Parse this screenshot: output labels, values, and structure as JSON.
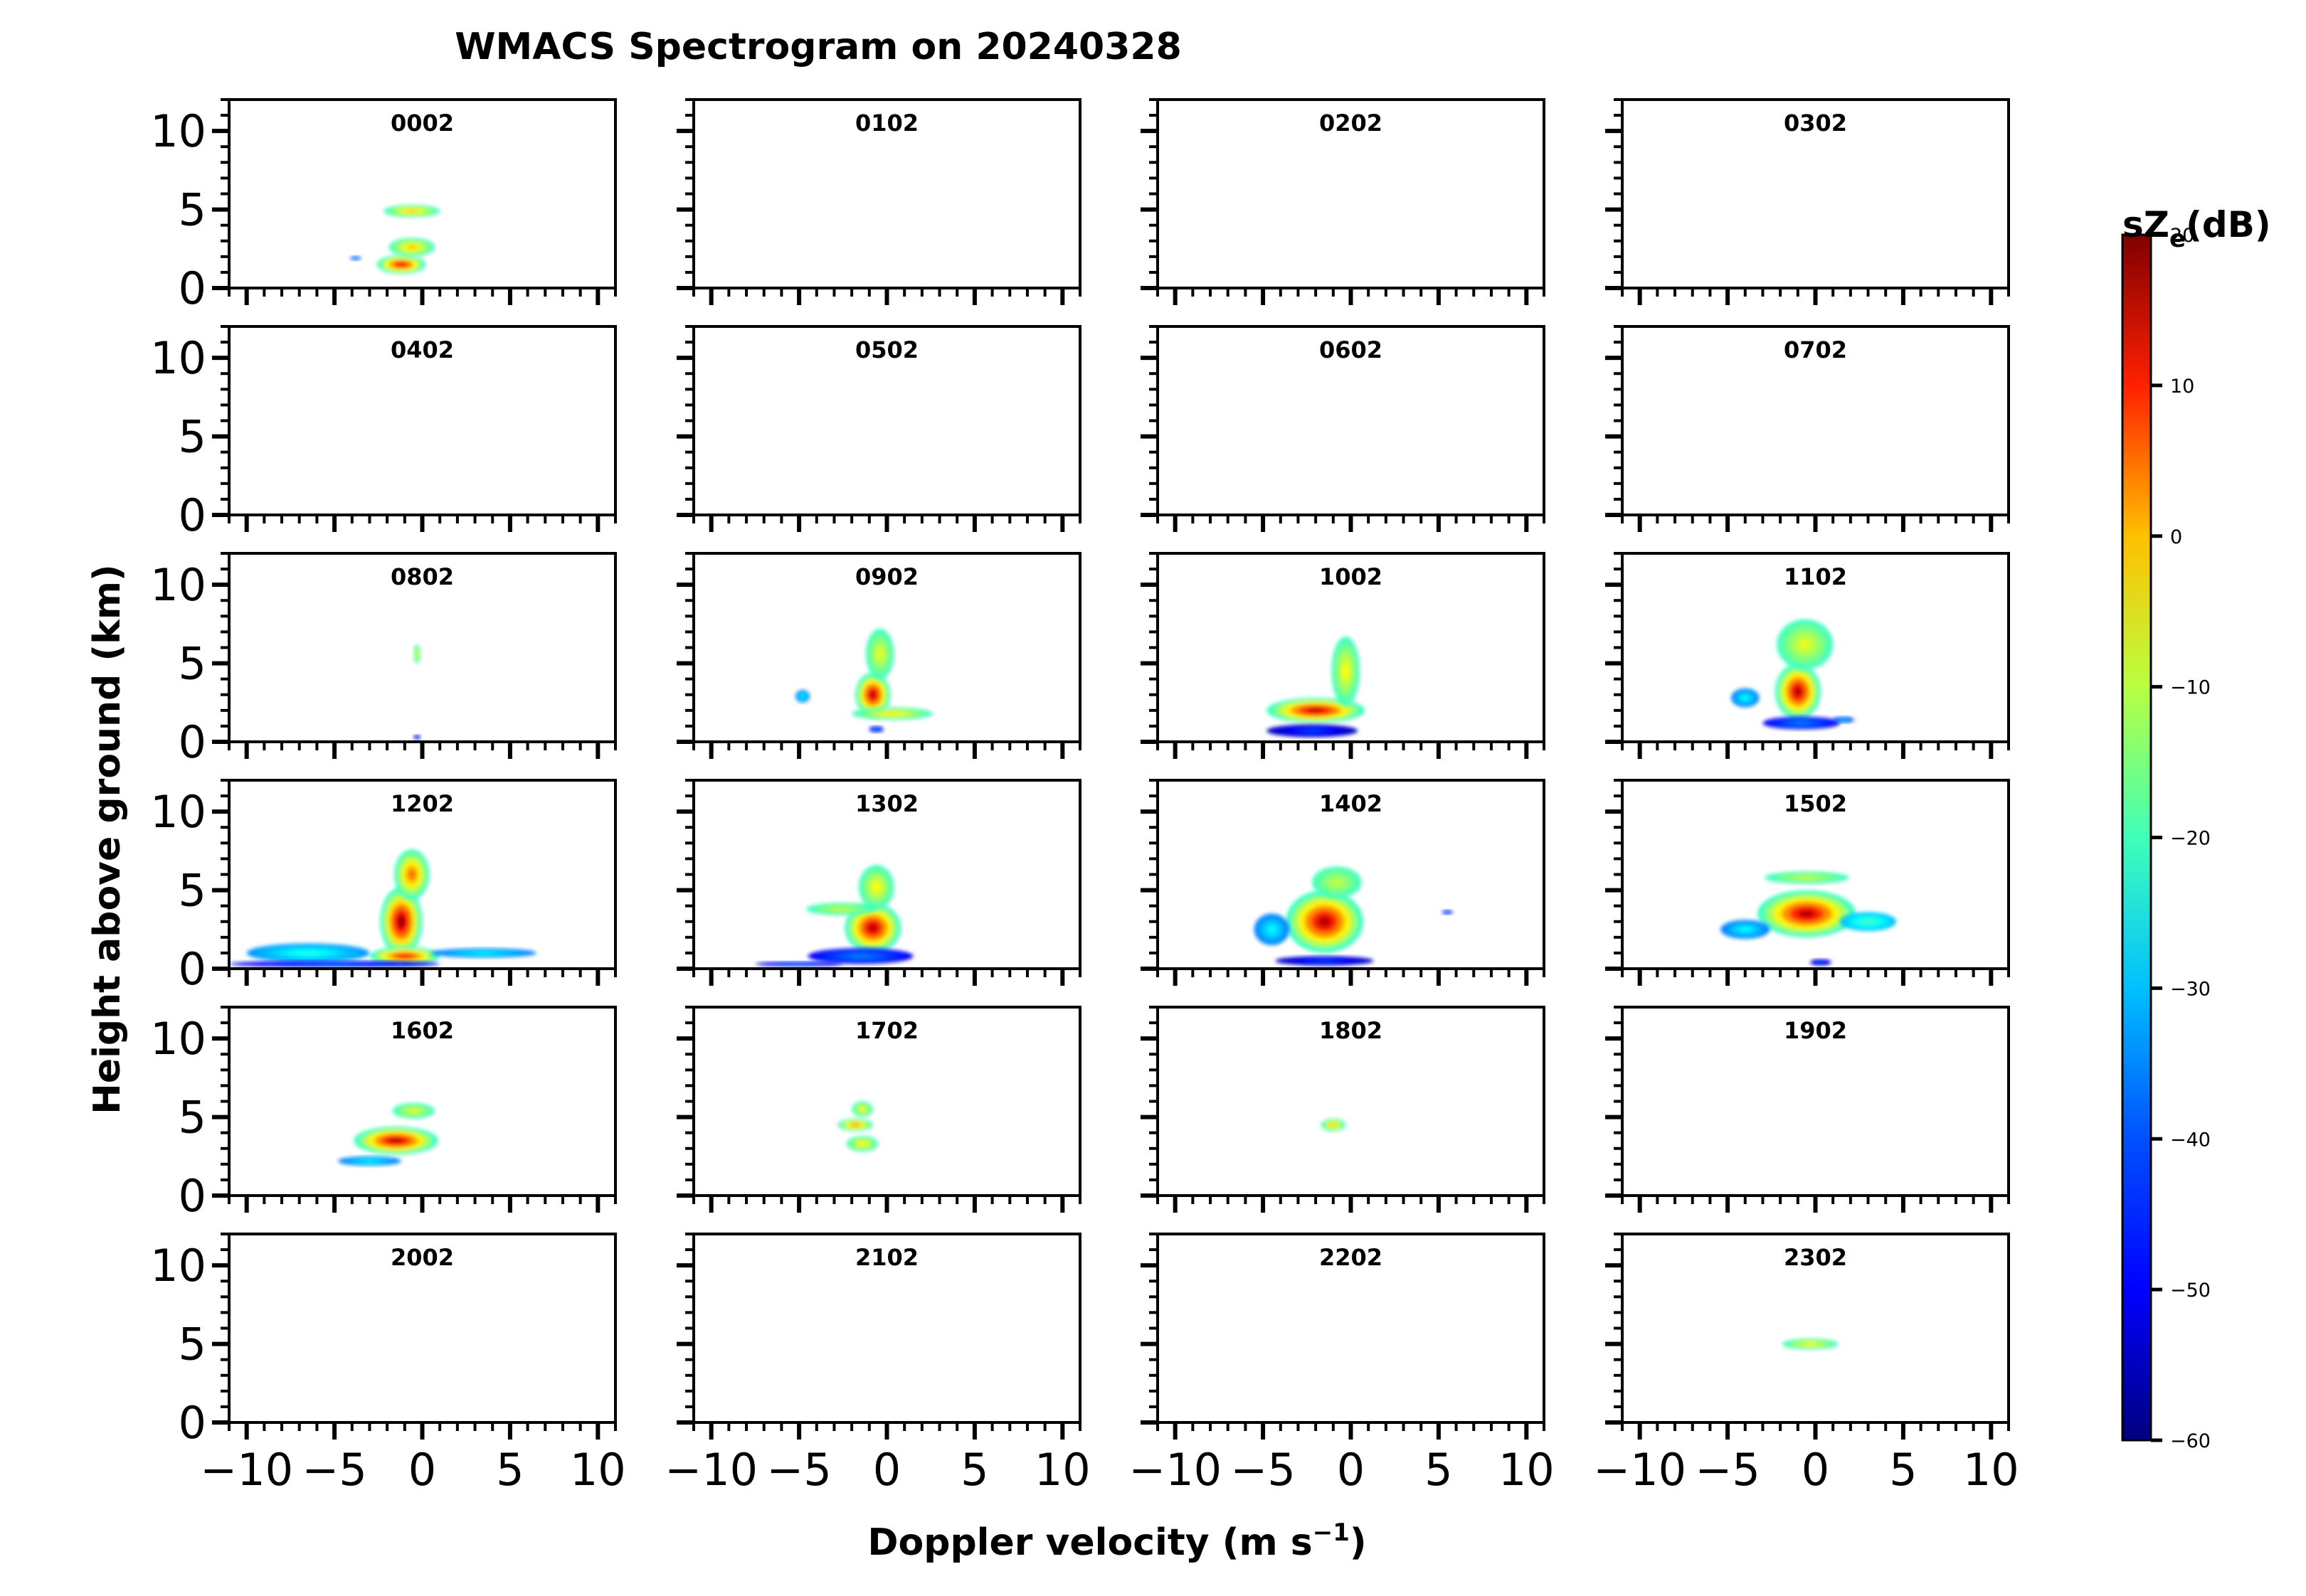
{
  "chart_data": {
    "type": "heatmap",
    "title": "WMACS Spectrogram on 20240328",
    "xlabel": "Doppler velocity (m s",
    "xlabel_superscript": "−1",
    "xlabel_suffix": ")",
    "ylabel": "Height above ground (km)",
    "xlim": [
      -11,
      11
    ],
    "ylim": [
      0,
      12
    ],
    "x_ticks": [
      -10,
      -5,
      0,
      5,
      10
    ],
    "x_tick_labels": [
      "−10",
      "−5",
      "0",
      "5",
      "10"
    ],
    "y_ticks": [
      0,
      5,
      10
    ],
    "y_tick_labels": [
      "0",
      "5",
      "10"
    ],
    "colorbar": {
      "label": "sZ",
      "label_subscript": "e",
      "label_suffix": "(dB)",
      "range": [
        -60,
        20
      ],
      "ticks": [
        20,
        10,
        0,
        -10,
        -20,
        -30,
        -40,
        -50,
        -60
      ],
      "tick_labels": [
        "20",
        "10",
        "0",
        "−10",
        "−20",
        "−30",
        "−40",
        "−50",
        "−60"
      ],
      "colormap": "jet",
      "colors": [
        "#00007f",
        "#0000ff",
        "#007fff",
        "#00ffff",
        "#7fff7f",
        "#ffff00",
        "#ff7f00",
        "#ff0000",
        "#7f0000"
      ]
    },
    "panels": [
      {
        "time": "0002",
        "echo": [
          {
            "v": -1.2,
            "h": 1.5,
            "dv": 1.4,
            "dh": 0.6,
            "peak": 12
          },
          {
            "v": -0.6,
            "h": 2.6,
            "dv": 1.3,
            "dh": 0.6,
            "peak": -5
          },
          {
            "v": -0.6,
            "h": 4.9,
            "dv": 1.6,
            "dh": 0.4,
            "peak": -5
          },
          {
            "v": -3.8,
            "h": 1.9,
            "dv": 0.3,
            "dh": 0.1,
            "peak": -35
          }
        ]
      },
      {
        "time": "0102",
        "echo": []
      },
      {
        "time": "0202",
        "echo": []
      },
      {
        "time": "0302",
        "echo": []
      },
      {
        "time": "0402",
        "echo": []
      },
      {
        "time": "0502",
        "echo": []
      },
      {
        "time": "0602",
        "echo": []
      },
      {
        "time": "0702",
        "echo": []
      },
      {
        "time": "0802",
        "echo": [
          {
            "v": -0.3,
            "h": 5.6,
            "dv": 0.2,
            "dh": 0.6,
            "peak": -12
          },
          {
            "v": -0.3,
            "h": 0.3,
            "dv": 0.2,
            "dh": 0.1,
            "peak": -45
          }
        ]
      },
      {
        "time": "0902",
        "echo": [
          {
            "v": -0.8,
            "h": 3.0,
            "dv": 1.0,
            "dh": 1.4,
            "peak": 15
          },
          {
            "v": -0.4,
            "h": 5.6,
            "dv": 0.8,
            "dh": 1.6,
            "peak": -12
          },
          {
            "v": 0.3,
            "h": 1.8,
            "dv": 2.3,
            "dh": 0.4,
            "peak": -8
          },
          {
            "v": -4.8,
            "h": 2.9,
            "dv": 0.4,
            "dh": 0.4,
            "peak": -30
          },
          {
            "v": -0.6,
            "h": 0.8,
            "dv": 0.4,
            "dh": 0.2,
            "peak": -40
          }
        ]
      },
      {
        "time": "1002",
        "echo": [
          {
            "v": -2.0,
            "h": 2.0,
            "dv": 2.8,
            "dh": 0.8,
            "peak": 15
          },
          {
            "v": -0.3,
            "h": 4.5,
            "dv": 0.8,
            "dh": 2.2,
            "peak": -10
          },
          {
            "v": -2.2,
            "h": 0.7,
            "dv": 2.6,
            "dh": 0.4,
            "peak": -45
          }
        ]
      },
      {
        "time": "1102",
        "echo": [
          {
            "v": -1.0,
            "h": 3.2,
            "dv": 1.3,
            "dh": 1.8,
            "peak": 15
          },
          {
            "v": -0.6,
            "h": 6.2,
            "dv": 1.6,
            "dh": 1.6,
            "peak": -12
          },
          {
            "v": -4.0,
            "h": 2.8,
            "dv": 0.8,
            "dh": 0.6,
            "peak": -30
          },
          {
            "v": -0.8,
            "h": 1.2,
            "dv": 2.2,
            "dh": 0.4,
            "peak": -40
          },
          {
            "v": 1.6,
            "h": 1.4,
            "dv": 0.6,
            "dh": 0.2,
            "peak": -35
          }
        ]
      },
      {
        "time": "1202",
        "echo": [
          {
            "v": -1.2,
            "h": 3.0,
            "dv": 1.2,
            "dh": 2.2,
            "peak": 18
          },
          {
            "v": -0.6,
            "h": 6.0,
            "dv": 1.0,
            "dh": 1.6,
            "peak": 2
          },
          {
            "v": -1.0,
            "h": 0.8,
            "dv": 2.0,
            "dh": 0.6,
            "peak": 10
          },
          {
            "v": -6.5,
            "h": 1.0,
            "dv": 3.5,
            "dh": 0.6,
            "peak": -28
          },
          {
            "v": -5.0,
            "h": 0.3,
            "dv": 6.0,
            "dh": 0.2,
            "peak": -42
          },
          {
            "v": 3.5,
            "h": 1.0,
            "dv": 3.0,
            "dh": 0.3,
            "peak": -30
          }
        ]
      },
      {
        "time": "1302",
        "echo": [
          {
            "v": -0.8,
            "h": 2.6,
            "dv": 1.6,
            "dh": 1.6,
            "peak": 15
          },
          {
            "v": -0.6,
            "h": 5.2,
            "dv": 1.0,
            "dh": 1.4,
            "peak": -10
          },
          {
            "v": -2.6,
            "h": 3.8,
            "dv": 2.0,
            "dh": 0.4,
            "peak": -15
          },
          {
            "v": -1.5,
            "h": 0.8,
            "dv": 3.0,
            "dh": 0.5,
            "peak": -40
          },
          {
            "v": -5.0,
            "h": 0.3,
            "dv": 2.5,
            "dh": 0.15,
            "peak": -42
          }
        ]
      },
      {
        "time": "1402",
        "echo": [
          {
            "v": -1.5,
            "h": 3.0,
            "dv": 2.2,
            "dh": 2.0,
            "peak": 15
          },
          {
            "v": -0.8,
            "h": 5.5,
            "dv": 1.4,
            "dh": 1.0,
            "peak": -15
          },
          {
            "v": -4.5,
            "h": 2.5,
            "dv": 1.0,
            "dh": 1.0,
            "peak": -30
          },
          {
            "v": -1.5,
            "h": 0.5,
            "dv": 2.8,
            "dh": 0.3,
            "peak": -45
          },
          {
            "v": 5.5,
            "h": 3.6,
            "dv": 0.3,
            "dh": 0.1,
            "peak": -40
          }
        ]
      },
      {
        "time": "1502",
        "echo": [
          {
            "v": -0.5,
            "h": 3.5,
            "dv": 2.8,
            "dh": 1.5,
            "peak": 15
          },
          {
            "v": -0.5,
            "h": 5.8,
            "dv": 2.4,
            "dh": 0.4,
            "peak": -15
          },
          {
            "v": 3.0,
            "h": 3.0,
            "dv": 1.6,
            "dh": 0.6,
            "peak": -25
          },
          {
            "v": -4.0,
            "h": 2.5,
            "dv": 1.4,
            "dh": 0.6,
            "peak": -30
          },
          {
            "v": 0.3,
            "h": 0.4,
            "dv": 0.6,
            "dh": 0.2,
            "peak": -45
          }
        ]
      },
      {
        "time": "1602",
        "echo": [
          {
            "v": -1.5,
            "h": 3.5,
            "dv": 2.4,
            "dh": 0.9,
            "peak": 15
          },
          {
            "v": -0.5,
            "h": 5.4,
            "dv": 1.2,
            "dh": 0.5,
            "peak": -12
          },
          {
            "v": -3.0,
            "h": 2.2,
            "dv": 1.8,
            "dh": 0.3,
            "peak": -30
          }
        ]
      },
      {
        "time": "1702",
        "echo": [
          {
            "v": -1.8,
            "h": 4.5,
            "dv": 1.0,
            "dh": 0.4,
            "peak": 0
          },
          {
            "v": -1.4,
            "h": 5.5,
            "dv": 0.6,
            "dh": 0.5,
            "peak": -10
          },
          {
            "v": -1.4,
            "h": 3.3,
            "dv": 0.9,
            "dh": 0.5,
            "peak": -8
          }
        ]
      },
      {
        "time": "1802",
        "echo": [
          {
            "v": -1.0,
            "h": 4.5,
            "dv": 0.7,
            "dh": 0.4,
            "peak": -5
          }
        ]
      },
      {
        "time": "1902",
        "echo": []
      },
      {
        "time": "2002",
        "echo": []
      },
      {
        "time": "2102",
        "echo": []
      },
      {
        "time": "2202",
        "echo": []
      },
      {
        "time": "2302",
        "echo": [
          {
            "v": -0.3,
            "h": 5.0,
            "dv": 1.6,
            "dh": 0.35,
            "peak": -10
          }
        ]
      }
    ]
  }
}
